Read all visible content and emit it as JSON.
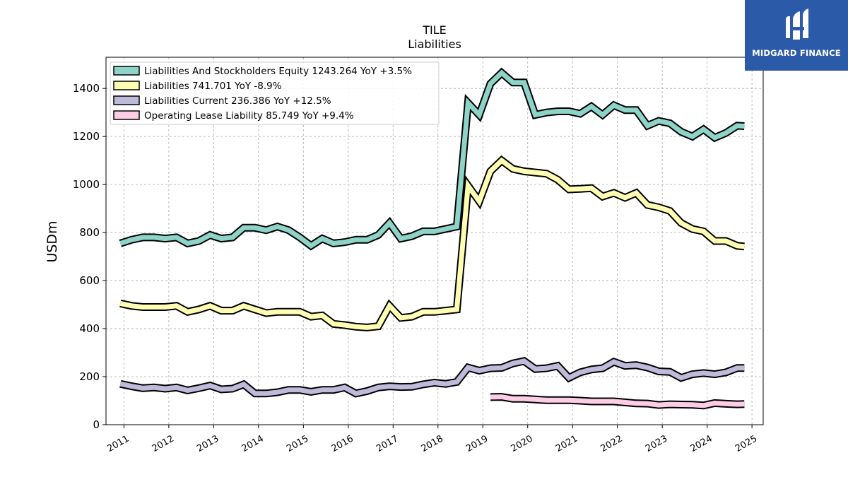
{
  "brand": {
    "name": "MIDGARD FINANCE",
    "bg_color": "#2b5aa8"
  },
  "chart_data": {
    "type": "line",
    "title": "TILE",
    "subtitle": "Liabilities",
    "ylabel": "USDm",
    "xlabel": "",
    "ylim": [
      0,
      1530
    ],
    "xlim": [
      2010.6,
      2025.25
    ],
    "yticks": [
      0,
      200,
      400,
      600,
      800,
      1000,
      1200,
      1400
    ],
    "xticks": [
      "2011",
      "2012",
      "2013",
      "2014",
      "2015",
      "2016",
      "2017",
      "2018",
      "2019",
      "2020",
      "2021",
      "2022",
      "2023",
      "2024",
      "2025"
    ],
    "grid": true,
    "legend_position": "top-left",
    "series": [
      {
        "name": "Liabilities And Stockholders Equity",
        "legend": "Liabilities And Stockholders Equity  1243.264 YoY +3.5%",
        "color": "#8dd3c7",
        "x": [
          2010.92,
          2011.17,
          2011.42,
          2011.67,
          2011.92,
          2012.17,
          2012.42,
          2012.67,
          2012.92,
          2013.17,
          2013.42,
          2013.67,
          2013.92,
          2014.17,
          2014.42,
          2014.67,
          2014.92,
          2015.17,
          2015.42,
          2015.67,
          2015.92,
          2016.17,
          2016.42,
          2016.67,
          2016.92,
          2017.17,
          2017.42,
          2017.67,
          2017.92,
          2018.17,
          2018.42,
          2018.67,
          2018.92,
          2019.17,
          2019.42,
          2019.67,
          2019.92,
          2020.17,
          2020.42,
          2020.67,
          2020.92,
          2021.17,
          2021.42,
          2021.67,
          2021.92,
          2022.17,
          2022.42,
          2022.67,
          2022.92,
          2023.17,
          2023.42,
          2023.67,
          2023.92,
          2024.17,
          2024.42,
          2024.67,
          2024.83
        ],
        "y": [
          755,
          770,
          780,
          780,
          775,
          780,
          755,
          765,
          790,
          775,
          780,
          820,
          820,
          810,
          825,
          810,
          780,
          745,
          775,
          755,
          760,
          770,
          770,
          790,
          840,
          775,
          785,
          805,
          805,
          815,
          825,
          1340,
          1290,
          1420,
          1465,
          1425,
          1425,
          1290,
          1300,
          1305,
          1305,
          1295,
          1325,
          1290,
          1330,
          1310,
          1310,
          1245,
          1265,
          1255,
          1220,
          1200,
          1230,
          1195,
          1215,
          1245,
          1243
        ]
      },
      {
        "name": "Liabilities",
        "legend": "Liabilities  741.701 YoY -8.9%",
        "color": "#ffffb3",
        "x": [
          2010.92,
          2011.17,
          2011.42,
          2011.67,
          2011.92,
          2012.17,
          2012.42,
          2012.67,
          2012.92,
          2013.17,
          2013.42,
          2013.67,
          2013.92,
          2014.17,
          2014.42,
          2014.67,
          2014.92,
          2015.17,
          2015.42,
          2015.67,
          2015.92,
          2016.17,
          2016.42,
          2016.67,
          2016.92,
          2017.17,
          2017.42,
          2017.67,
          2017.92,
          2018.17,
          2018.42,
          2018.67,
          2018.92,
          2019.17,
          2019.42,
          2019.67,
          2019.92,
          2020.17,
          2020.42,
          2020.67,
          2020.92,
          2021.17,
          2021.42,
          2021.67,
          2021.92,
          2022.17,
          2022.42,
          2022.67,
          2022.92,
          2023.17,
          2023.42,
          2023.67,
          2023.92,
          2024.17,
          2024.42,
          2024.67,
          2024.83
        ],
        "y": [
          505,
          495,
          490,
          490,
          490,
          495,
          470,
          480,
          495,
          475,
          475,
          495,
          480,
          465,
          470,
          470,
          470,
          450,
          455,
          420,
          415,
          408,
          405,
          410,
          495,
          445,
          450,
          470,
          470,
          475,
          480,
          995,
          930,
          1055,
          1100,
          1065,
          1055,
          1050,
          1045,
          1020,
          980,
          982,
          985,
          950,
          965,
          945,
          965,
          915,
          905,
          890,
          840,
          815,
          805,
          765,
          765,
          745,
          742
        ]
      },
      {
        "name": "Liabilities Current",
        "legend": "Liabilities Current  236.386 YoY +12.5%",
        "color": "#bebada",
        "x": [
          2010.92,
          2011.17,
          2011.42,
          2011.67,
          2011.92,
          2012.17,
          2012.42,
          2012.67,
          2012.92,
          2013.17,
          2013.42,
          2013.67,
          2013.92,
          2014.17,
          2014.42,
          2014.67,
          2014.92,
          2015.17,
          2015.42,
          2015.67,
          2015.92,
          2016.17,
          2016.42,
          2016.67,
          2016.92,
          2017.17,
          2017.42,
          2017.67,
          2017.92,
          2018.17,
          2018.42,
          2018.67,
          2018.92,
          2019.17,
          2019.42,
          2019.67,
          2019.92,
          2020.17,
          2020.42,
          2020.67,
          2020.92,
          2021.17,
          2021.42,
          2021.67,
          2021.92,
          2022.17,
          2022.42,
          2022.67,
          2022.92,
          2023.17,
          2023.42,
          2023.67,
          2023.92,
          2024.17,
          2024.42,
          2024.67,
          2024.83
        ],
        "y": [
          170,
          160,
          152,
          155,
          150,
          155,
          143,
          152,
          163,
          147,
          150,
          168,
          130,
          130,
          135,
          145,
          145,
          137,
          145,
          145,
          155,
          130,
          140,
          155,
          160,
          157,
          158,
          168,
          175,
          170,
          178,
          238,
          225,
          235,
          237,
          255,
          265,
          232,
          235,
          245,
          195,
          218,
          230,
          235,
          262,
          245,
          248,
          238,
          222,
          220,
          195,
          210,
          215,
          210,
          218,
          236,
          236
        ]
      },
      {
        "name": "Operating Lease Liability",
        "legend": "Operating Lease Liability  85.749 YoY +9.4%",
        "color": "#fccde5",
        "x": [
          2019.17,
          2019.42,
          2019.67,
          2019.92,
          2020.17,
          2020.42,
          2020.67,
          2020.92,
          2021.17,
          2021.42,
          2021.67,
          2021.92,
          2022.17,
          2022.42,
          2022.67,
          2022.92,
          2023.17,
          2023.42,
          2023.67,
          2023.92,
          2024.17,
          2024.42,
          2024.67,
          2024.83
        ],
        "y": [
          115,
          116,
          108,
          108,
          105,
          102,
          102,
          102,
          100,
          97,
          97,
          97,
          93,
          89,
          88,
          82,
          85,
          84,
          83,
          80,
          90,
          87,
          85,
          86
        ]
      }
    ]
  }
}
